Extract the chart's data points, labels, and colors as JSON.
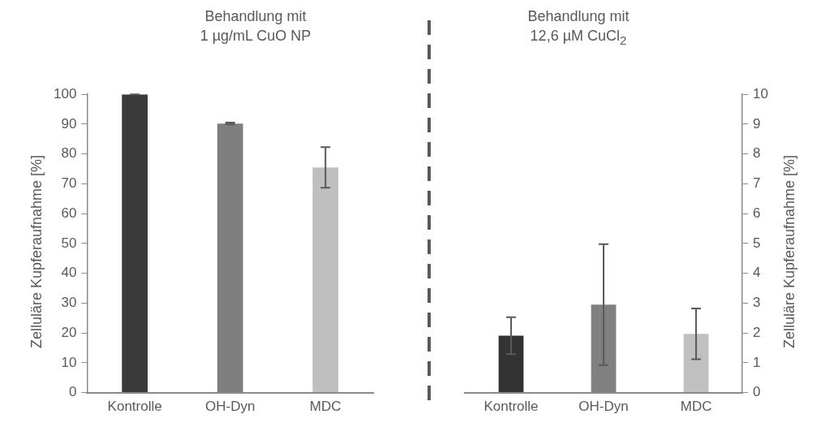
{
  "chart_data": [
    {
      "type": "bar",
      "title": "Behandlung mit\n1 µg/mL CuO NP",
      "ylabel": "Zelluläre Kupferaufnahme [%]",
      "categories": [
        "Kontrolle",
        "OH-Dyn",
        "MDC"
      ],
      "series": [
        {
          "values": [
            100,
            90.2,
            75.5
          ],
          "colors": [
            "#3a3a3a",
            "#7f7f7f",
            "#bfbfbf"
          ],
          "errors": [
            0,
            0.3,
            6.8
          ]
        }
      ],
      "ylim": [
        0,
        100
      ],
      "yticks": [
        0,
        10,
        20,
        30,
        40,
        50,
        60,
        70,
        80,
        90,
        100
      ],
      "grid": false,
      "legend": false
    },
    {
      "type": "bar",
      "title": "Behandlung mit\n12,6 µM CuCl$_{2}$",
      "y2label": "Zelluläre Kupferaufnahme [%]",
      "categories": [
        "Kontrolle",
        "OH-Dyn",
        "MDC"
      ],
      "series": [
        {
          "values": [
            1.91,
            2.95,
            1.97
          ],
          "colors": [
            "#333333",
            "#808080",
            "#c0c0c0"
          ],
          "errors": [
            0.62,
            2.03,
            0.85
          ],
          "axis": "y2"
        }
      ],
      "y2lim": [
        0,
        10
      ],
      "y2ticks": [
        0,
        1,
        2,
        3,
        4,
        5,
        6,
        7,
        8,
        9,
        10
      ],
      "grid": false,
      "legend": false
    }
  ]
}
